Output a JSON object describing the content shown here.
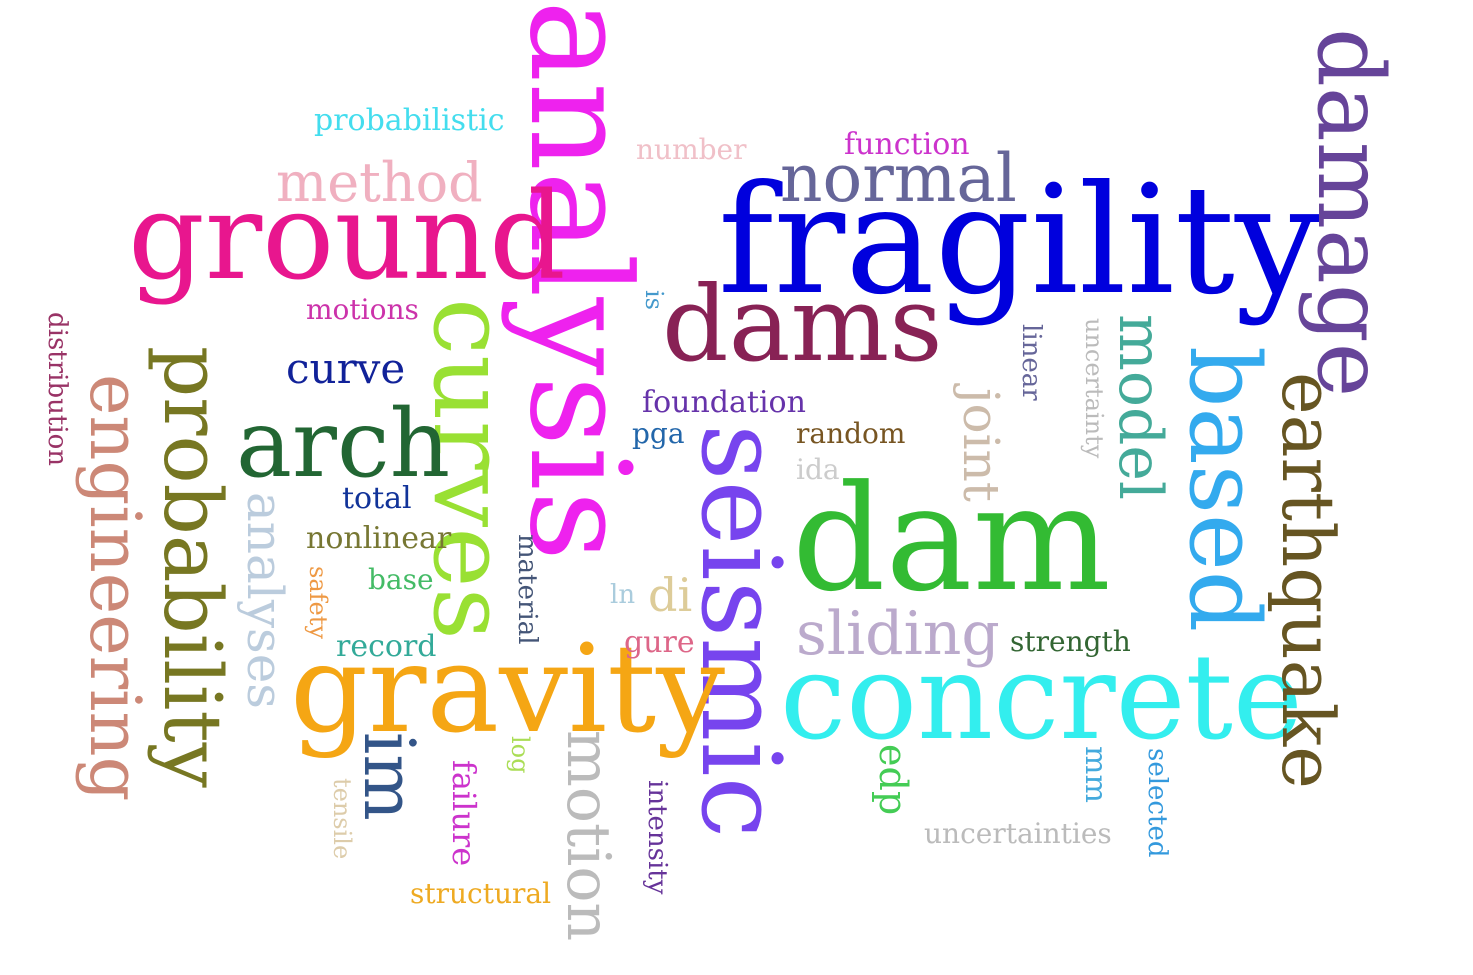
{
  "words": [
    {
      "id": "analysis",
      "text": "analysis",
      "color": "#ee22ee",
      "rot": true
    },
    {
      "id": "fragility",
      "text": "fragility",
      "color": "#0000dd",
      "rot": false
    },
    {
      "id": "ground",
      "text": "ground",
      "color": "#e8168e",
      "rot": false
    },
    {
      "id": "dam",
      "text": "dam",
      "color": "#33bb33",
      "rot": false
    },
    {
      "id": "seismic",
      "text": "seismic",
      "color": "#7744ee",
      "rot": true
    },
    {
      "id": "concrete",
      "text": "concrete",
      "color": "#33eeee",
      "rot": false
    },
    {
      "id": "gravity",
      "text": "gravity",
      "color": "#f5a614",
      "rot": false
    },
    {
      "id": "damage",
      "text": "damage",
      "color": "#664499",
      "rot": true
    },
    {
      "id": "curves",
      "text": "curves",
      "color": "#99e033",
      "rot": true
    },
    {
      "id": "dams",
      "text": "dams",
      "color": "#882255",
      "rot": false
    },
    {
      "id": "based",
      "text": "based",
      "color": "#33aaee",
      "rot": true
    },
    {
      "id": "probability",
      "text": "probability",
      "color": "#777722",
      "rot": true
    },
    {
      "id": "arch",
      "text": "arch",
      "color": "#226633",
      "rot": false
    },
    {
      "id": "engineering",
      "text": "engineering",
      "color": "#cc8877",
      "rot": true
    },
    {
      "id": "earthquake",
      "text": "earthquake",
      "color": "#665522",
      "rot": true
    },
    {
      "id": "normal",
      "text": "normal",
      "color": "#666699",
      "rot": false
    },
    {
      "id": "method",
      "text": "method",
      "color": "#f0b0c0",
      "rot": false
    },
    {
      "id": "motion",
      "text": "motion",
      "color": "#bbbbbb",
      "rot": true
    },
    {
      "id": "sliding",
      "text": "sliding",
      "color": "#bbaacc",
      "rot": false
    },
    {
      "id": "model",
      "text": "model",
      "color": "#44aa99",
      "rot": true
    },
    {
      "id": "im",
      "text": "im",
      "color": "#335588",
      "rot": true
    },
    {
      "id": "analyses",
      "text": "analyses",
      "color": "#bbccdd",
      "rot": true
    },
    {
      "id": "joint",
      "text": "joint",
      "color": "#ccbbaa",
      "rot": true
    },
    {
      "id": "curve",
      "text": "curve",
      "color": "#112299",
      "rot": false
    },
    {
      "id": "di",
      "text": "di",
      "color": "#ddcc99",
      "rot": false
    },
    {
      "id": "probabilistic",
      "text": "probabilistic",
      "color": "#44ddee",
      "rot": false
    },
    {
      "id": "function",
      "text": "function",
      "color": "#cc33cc",
      "rot": false
    },
    {
      "id": "number",
      "text": "number",
      "color": "#f0c0c8",
      "rot": false
    },
    {
      "id": "motions",
      "text": "motions",
      "color": "#cc33aa",
      "rot": false
    },
    {
      "id": "foundation",
      "text": "foundation",
      "color": "#6633aa",
      "rot": false
    },
    {
      "id": "random",
      "text": "random",
      "color": "#775522",
      "rot": false
    },
    {
      "id": "strength",
      "text": "strength",
      "color": "#336633",
      "rot": false
    },
    {
      "id": "uncertainties",
      "text": "uncertainties",
      "color": "#bbbbbb",
      "rot": false
    },
    {
      "id": "structural",
      "text": "structural",
      "color": "#eeaa22",
      "rot": false
    },
    {
      "id": "nonlinear",
      "text": "nonlinear",
      "color": "#777733",
      "rot": false
    },
    {
      "id": "record",
      "text": "record",
      "color": "#33aa99",
      "rot": false
    },
    {
      "id": "gure",
      "text": "gure",
      "color": "#dd6688",
      "rot": false
    },
    {
      "id": "base",
      "text": "base",
      "color": "#44bb66",
      "rot": false
    },
    {
      "id": "total",
      "text": "total",
      "color": "#113399",
      "rot": false
    },
    {
      "id": "pga",
      "text": "pga",
      "color": "#2266aa",
      "rot": false
    },
    {
      "id": "ida",
      "text": "ida",
      "color": "#cccccc",
      "rot": false
    },
    {
      "id": "edp",
      "text": "edp",
      "color": "#44cc55",
      "rot": true
    },
    {
      "id": "failure",
      "text": "failure",
      "color": "#cc33cc",
      "rot": true
    },
    {
      "id": "linear",
      "text": "linear",
      "color": "#666699",
      "rot": true
    },
    {
      "id": "uncertainty",
      "text": "uncertainty",
      "color": "#bbbbbb",
      "rot": true
    },
    {
      "id": "distribution",
      "text": "distribution",
      "color": "#993366",
      "rot": true
    },
    {
      "id": "material",
      "text": "material",
      "color": "#445577",
      "rot": true
    },
    {
      "id": "intensity",
      "text": "intensity",
      "color": "#663399",
      "rot": true
    },
    {
      "id": "selected",
      "text": "selected",
      "color": "#3399dd",
      "rot": true
    },
    {
      "id": "mm",
      "text": "mm",
      "color": "#44aadd",
      "rot": true
    },
    {
      "id": "safety",
      "text": "safety",
      "color": "#ee9944",
      "rot": true
    },
    {
      "id": "tensile",
      "text": "tensile",
      "color": "#ddccaa",
      "rot": true
    },
    {
      "id": "log",
      "text": "log",
      "color": "#aadd55",
      "rot": true
    },
    {
      "id": "is",
      "text": "is",
      "color": "#4499cc",
      "rot": true
    },
    {
      "id": "ln",
      "text": "ln",
      "color": "#aaccdd",
      "rot": false
    }
  ]
}
